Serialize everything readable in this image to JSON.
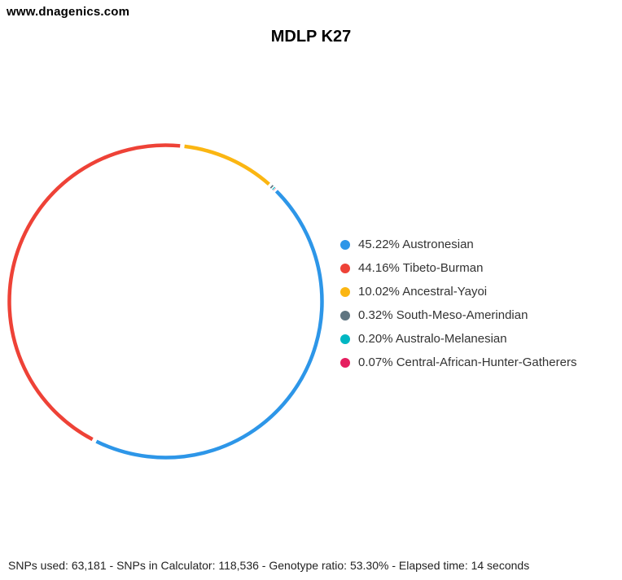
{
  "header": {
    "site": "www.dnagenics.com"
  },
  "chart_data": {
    "type": "pie",
    "style": "ring",
    "title": "MDLP K27",
    "rotation_deg": 44.3,
    "legend_position": "right",
    "ring_stroke_px": 4.5,
    "segment_gap_deg": 1.6,
    "series": [
      {
        "label": "Austronesian",
        "value": 45.22,
        "display": "45.22% Austronesian",
        "color": "#2D96E8"
      },
      {
        "label": "Tibeto-Burman",
        "value": 44.16,
        "display": "44.16% Tibeto-Burman",
        "color": "#EE4237"
      },
      {
        "label": "Ancestral-Yayoi",
        "value": 10.02,
        "display": "10.02% Ancestral-Yayoi",
        "color": "#FBB612"
      },
      {
        "label": "South-Meso-Amerindian",
        "value": 0.32,
        "display": "0.32% South-Meso-Amerindian",
        "color": "#5F7581"
      },
      {
        "label": "Australo-Melanesian",
        "value": 0.2,
        "display": "0.20% Australo-Melanesian",
        "color": "#00B6C2"
      },
      {
        "label": "Central-African-Hunter-Gatherers",
        "value": 0.07,
        "display": "0.07% Central-African-Hunter-Gatherers",
        "color": "#E51E5F"
      }
    ]
  },
  "footer": {
    "text": "SNPs used: 63,181 - SNPs in Calculator: 118,536 - Genotype ratio: 53.30% - Elapsed time: 14 seconds"
  }
}
